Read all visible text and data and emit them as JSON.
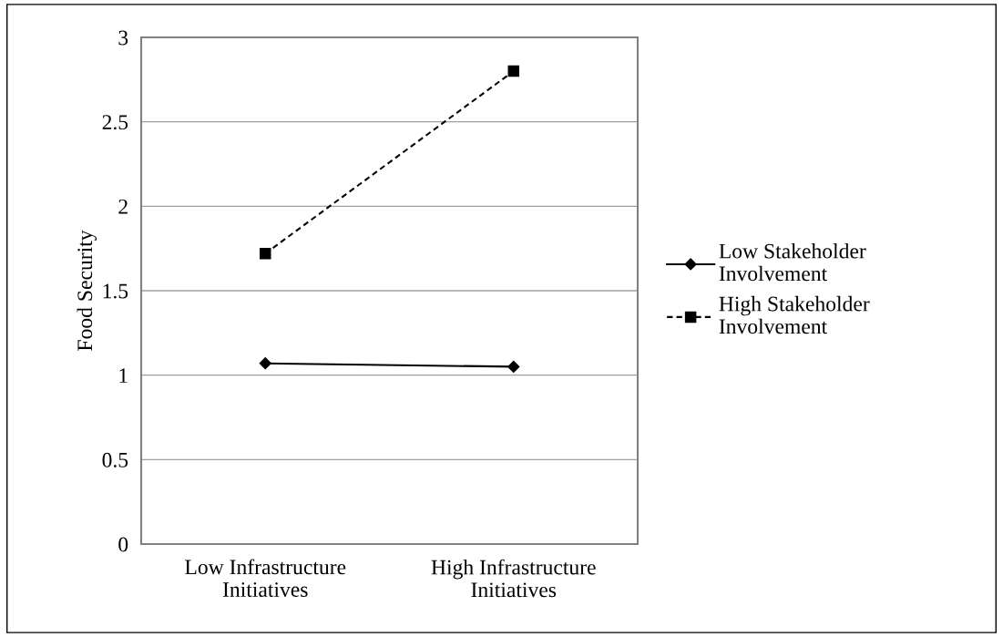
{
  "chart_data": {
    "type": "line",
    "ylabel": "Food Security",
    "categories": [
      "Low Infrastructure Initiatives",
      "High Infrastructure Initiatives"
    ],
    "series": [
      {
        "name": "Low Stakeholder Involvement",
        "color": "#000000",
        "values": [
          1.07,
          1.05
        ],
        "marker": "diamond",
        "line_style": "solid"
      },
      {
        "name": "High Stakeholder Involvement",
        "color": "#000000",
        "values": [
          1.72,
          2.8
        ],
        "marker": "square",
        "line_style": "dashed"
      }
    ],
    "ylim": [
      0,
      3
    ],
    "yticks": [
      0,
      0.5,
      1,
      1.5,
      2,
      2.5,
      3
    ],
    "grid": "y",
    "legend": "right"
  }
}
